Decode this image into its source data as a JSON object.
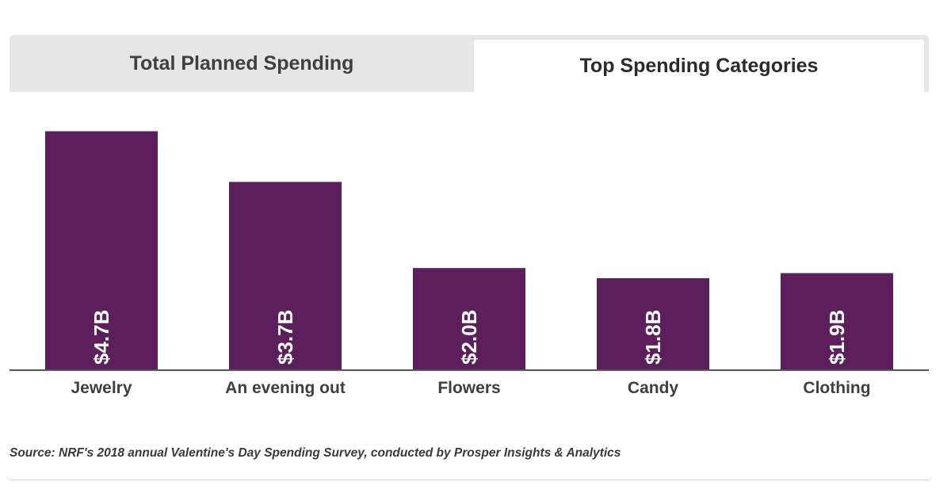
{
  "tabs": [
    {
      "label": "Total Planned Spending",
      "active": false
    },
    {
      "label": "Top Spending Categories",
      "active": true
    }
  ],
  "chart_data": {
    "type": "bar",
    "categories": [
      "Jewelry",
      "An evening out",
      "Flowers",
      "Candy",
      "Clothing"
    ],
    "values": [
      4.7,
      3.7,
      2.0,
      1.8,
      1.9
    ],
    "data_labels": [
      "$4.7B",
      "$3.7B",
      "$2.0B",
      "$1.8B",
      "$1.9B"
    ],
    "unit": "B",
    "title": "",
    "xlabel": "",
    "ylabel": "",
    "ylim": [
      0,
      5.1
    ],
    "grid": false,
    "legend": "none",
    "bar_color": "#5c1f5b",
    "axis_color": "#555555"
  },
  "source_note": "Source: NRF's 2018 annual Valentine's Day Spending Survey, conducted by Prosper Insights & Analytics"
}
